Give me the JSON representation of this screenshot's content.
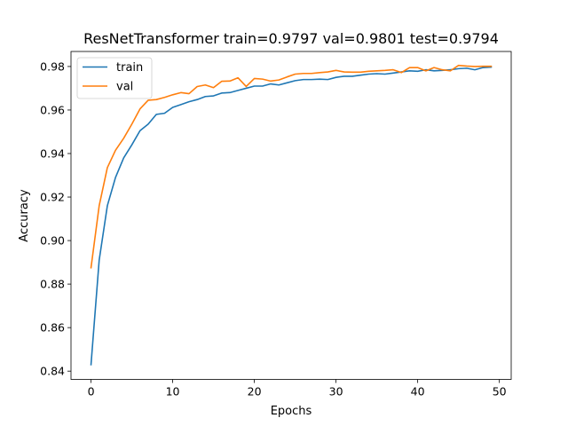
{
  "chart_data": {
    "type": "line",
    "title": "ResNetTransformer train=0.9797 val=0.9801 test=0.9794",
    "xlabel": "Epochs",
    "ylabel": "Accuracy",
    "xlim": [
      -2.45,
      51.45
    ],
    "ylim": [
      0.8362,
      0.9869
    ],
    "xticks": [
      0,
      10,
      20,
      30,
      40,
      50
    ],
    "yticks": [
      0.84,
      0.86,
      0.88,
      0.9,
      0.92,
      0.94,
      0.96,
      0.98
    ],
    "xtick_labels": [
      "0",
      "10",
      "20",
      "30",
      "40",
      "50"
    ],
    "ytick_labels": [
      "0.84",
      "0.86",
      "0.88",
      "0.90",
      "0.92",
      "0.94",
      "0.96",
      "0.98"
    ],
    "grid": false,
    "legend_position": "upper-left",
    "x": [
      0,
      1,
      2,
      3,
      4,
      5,
      6,
      7,
      8,
      9,
      10,
      11,
      12,
      13,
      14,
      15,
      16,
      17,
      18,
      19,
      20,
      21,
      22,
      23,
      24,
      25,
      26,
      27,
      28,
      29,
      30,
      31,
      32,
      33,
      34,
      35,
      36,
      37,
      38,
      39,
      40,
      41,
      42,
      43,
      44,
      45,
      46,
      47,
      48,
      49
    ],
    "series": [
      {
        "name": "train",
        "color": "#1f77b4",
        "values": [
          0.843,
          0.891,
          0.916,
          0.929,
          0.938,
          0.944,
          0.9505,
          0.9535,
          0.958,
          0.9585,
          0.9612,
          0.9625,
          0.9638,
          0.9648,
          0.9662,
          0.9665,
          0.9678,
          0.968,
          0.969,
          0.97,
          0.971,
          0.971,
          0.972,
          0.9715,
          0.9725,
          0.9735,
          0.974,
          0.974,
          0.9742,
          0.974,
          0.975,
          0.9755,
          0.9755,
          0.976,
          0.9765,
          0.9767,
          0.9765,
          0.977,
          0.9775,
          0.978,
          0.9778,
          0.9785,
          0.978,
          0.9782,
          0.9785,
          0.979,
          0.9792,
          0.9785,
          0.9795,
          0.9797
        ]
      },
      {
        "name": "val",
        "color": "#ff7f0e",
        "values": [
          0.8875,
          0.916,
          0.9335,
          0.9415,
          0.947,
          0.9535,
          0.9605,
          0.9645,
          0.9648,
          0.9658,
          0.967,
          0.968,
          0.9675,
          0.9708,
          0.9715,
          0.9703,
          0.9732,
          0.9733,
          0.9748,
          0.9708,
          0.9745,
          0.9742,
          0.9733,
          0.9738,
          0.9752,
          0.9765,
          0.9768,
          0.9768,
          0.9772,
          0.9775,
          0.9782,
          0.9775,
          0.9774,
          0.9774,
          0.9778,
          0.978,
          0.9782,
          0.9785,
          0.9772,
          0.9795,
          0.9795,
          0.978,
          0.9795,
          0.9785,
          0.978,
          0.9805,
          0.9802,
          0.98,
          0.9801,
          0.9801
        ]
      }
    ]
  }
}
